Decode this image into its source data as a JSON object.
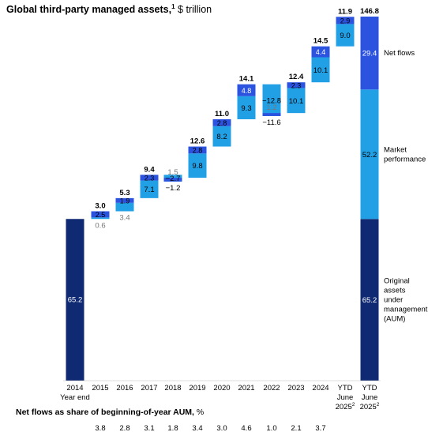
{
  "title": {
    "bold": "Global third-party managed assets,",
    "sup": "1",
    "unit": " $ trillion"
  },
  "colors": {
    "aum": "#0f2a72",
    "market": "#22a0e6",
    "flows": "#2b53e0",
    "text_light": "#ffffff",
    "text_dark": "#000000",
    "text_grey": "#777777"
  },
  "footer": {
    "label_bold": "Net flows as share of beginning-of-year AUM,",
    "label_unit": " %"
  },
  "chart_data": {
    "type": "bar",
    "subtype": "waterfall",
    "categories": [
      [
        "2014",
        "Year end"
      ],
      [
        "2015"
      ],
      [
        "2016"
      ],
      [
        "2017"
      ],
      [
        "2018"
      ],
      [
        "2019"
      ],
      [
        "2020"
      ],
      [
        "2021"
      ],
      [
        "2022"
      ],
      [
        "2023"
      ],
      [
        "2024"
      ],
      [
        "YTD",
        "June",
        "2025",
        "2"
      ],
      [
        "YTD",
        "June",
        "2025",
        "2"
      ]
    ],
    "start": {
      "value": 65.2,
      "label": "65.2"
    },
    "steps": [
      {
        "market": 0.6,
        "market_label": "0.6",
        "flows": 2.5,
        "flows_label": "2.5",
        "total": "3.0"
      },
      {
        "market": 3.4,
        "market_label": "3.4",
        "flows": 1.9,
        "flows_label": "1.9",
        "total": "5.3"
      },
      {
        "market": 7.1,
        "market_label": "7.1",
        "flows": 2.3,
        "flows_label": "2.3",
        "total": "9.4"
      },
      {
        "market": -2.7,
        "market_label": "−2.7",
        "flows": 1.5,
        "flows_label": "1.5",
        "total": "−1.2"
      },
      {
        "market": 9.8,
        "market_label": "9.8",
        "flows": 2.8,
        "flows_label": "2.8",
        "total": "12.6"
      },
      {
        "market": 8.2,
        "market_label": "8.2",
        "flows": 2.8,
        "flows_label": "2.8",
        "total": "11.0"
      },
      {
        "market": 9.3,
        "market_label": "9.3",
        "flows": 4.8,
        "flows_label": "4.8",
        "total": "14.1"
      },
      {
        "market": -12.8,
        "market_label": "−12.8",
        "flows": 1.2,
        "flows_label": "1.2",
        "total": "−11.6"
      },
      {
        "market": 10.1,
        "market_label": "10.1",
        "flows": 2.3,
        "flows_label": "2.3",
        "total": "12.4"
      },
      {
        "market": 10.1,
        "market_label": "10.1",
        "flows": 4.4,
        "flows_label": "4.4",
        "total": "14.5"
      },
      {
        "market": 9.0,
        "market_label": "9.0",
        "flows": 2.9,
        "flows_label": "2.9",
        "total": "11.9"
      }
    ],
    "final": {
      "total": "146.8",
      "segments": [
        {
          "name": "Original assets under management (AUM)",
          "value": 65.2,
          "label": "65.2",
          "legend": [
            "Original",
            "assets",
            "under",
            "management",
            "(AUM)"
          ]
        },
        {
          "name": "Market performance",
          "value": 52.2,
          "label": "52.2",
          "legend": [
            "Market",
            "performance"
          ]
        },
        {
          "name": "Net flows",
          "value": 29.4,
          "label": "29.4",
          "legend": [
            "Net flows"
          ]
        }
      ]
    },
    "net_flow_share": [
      "",
      "3.8",
      "2.8",
      "3.1",
      "1.8",
      "3.4",
      "3.0",
      "4.6",
      "1.0",
      "2.1",
      "3.7",
      "",
      ""
    ],
    "ylim": [
      0,
      146.8
    ]
  }
}
